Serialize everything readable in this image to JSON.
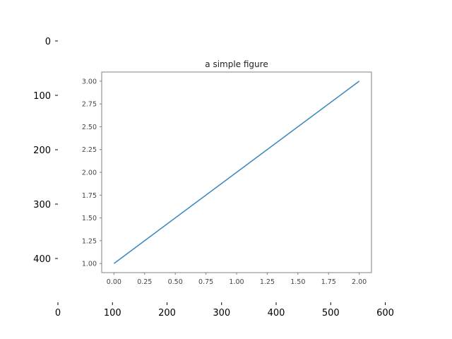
{
  "chart_data": [
    {
      "type": "image-axes",
      "x_ticks": [
        0,
        100,
        200,
        300,
        400,
        500,
        600
      ],
      "y_ticks": [
        0,
        100,
        200,
        300,
        400
      ],
      "y_inverted": true,
      "frame_visible": false
    },
    {
      "type": "line",
      "title": "a simple figure",
      "x": [
        0,
        1,
        2
      ],
      "series": [
        {
          "values": [
            1,
            2,
            3
          ],
          "color": "#3a87c0"
        }
      ],
      "xlim": [
        -0.1,
        2.1
      ],
      "ylim": [
        0.9,
        3.1
      ],
      "x_ticks": [
        "0.00",
        "0.25",
        "0.50",
        "0.75",
        "1.00",
        "1.25",
        "1.50",
        "1.75",
        "2.00"
      ],
      "y_ticks": [
        "1.00",
        "1.25",
        "1.50",
        "1.75",
        "2.00",
        "2.25",
        "2.50",
        "2.75",
        "3.00"
      ],
      "grid": false
    }
  ]
}
